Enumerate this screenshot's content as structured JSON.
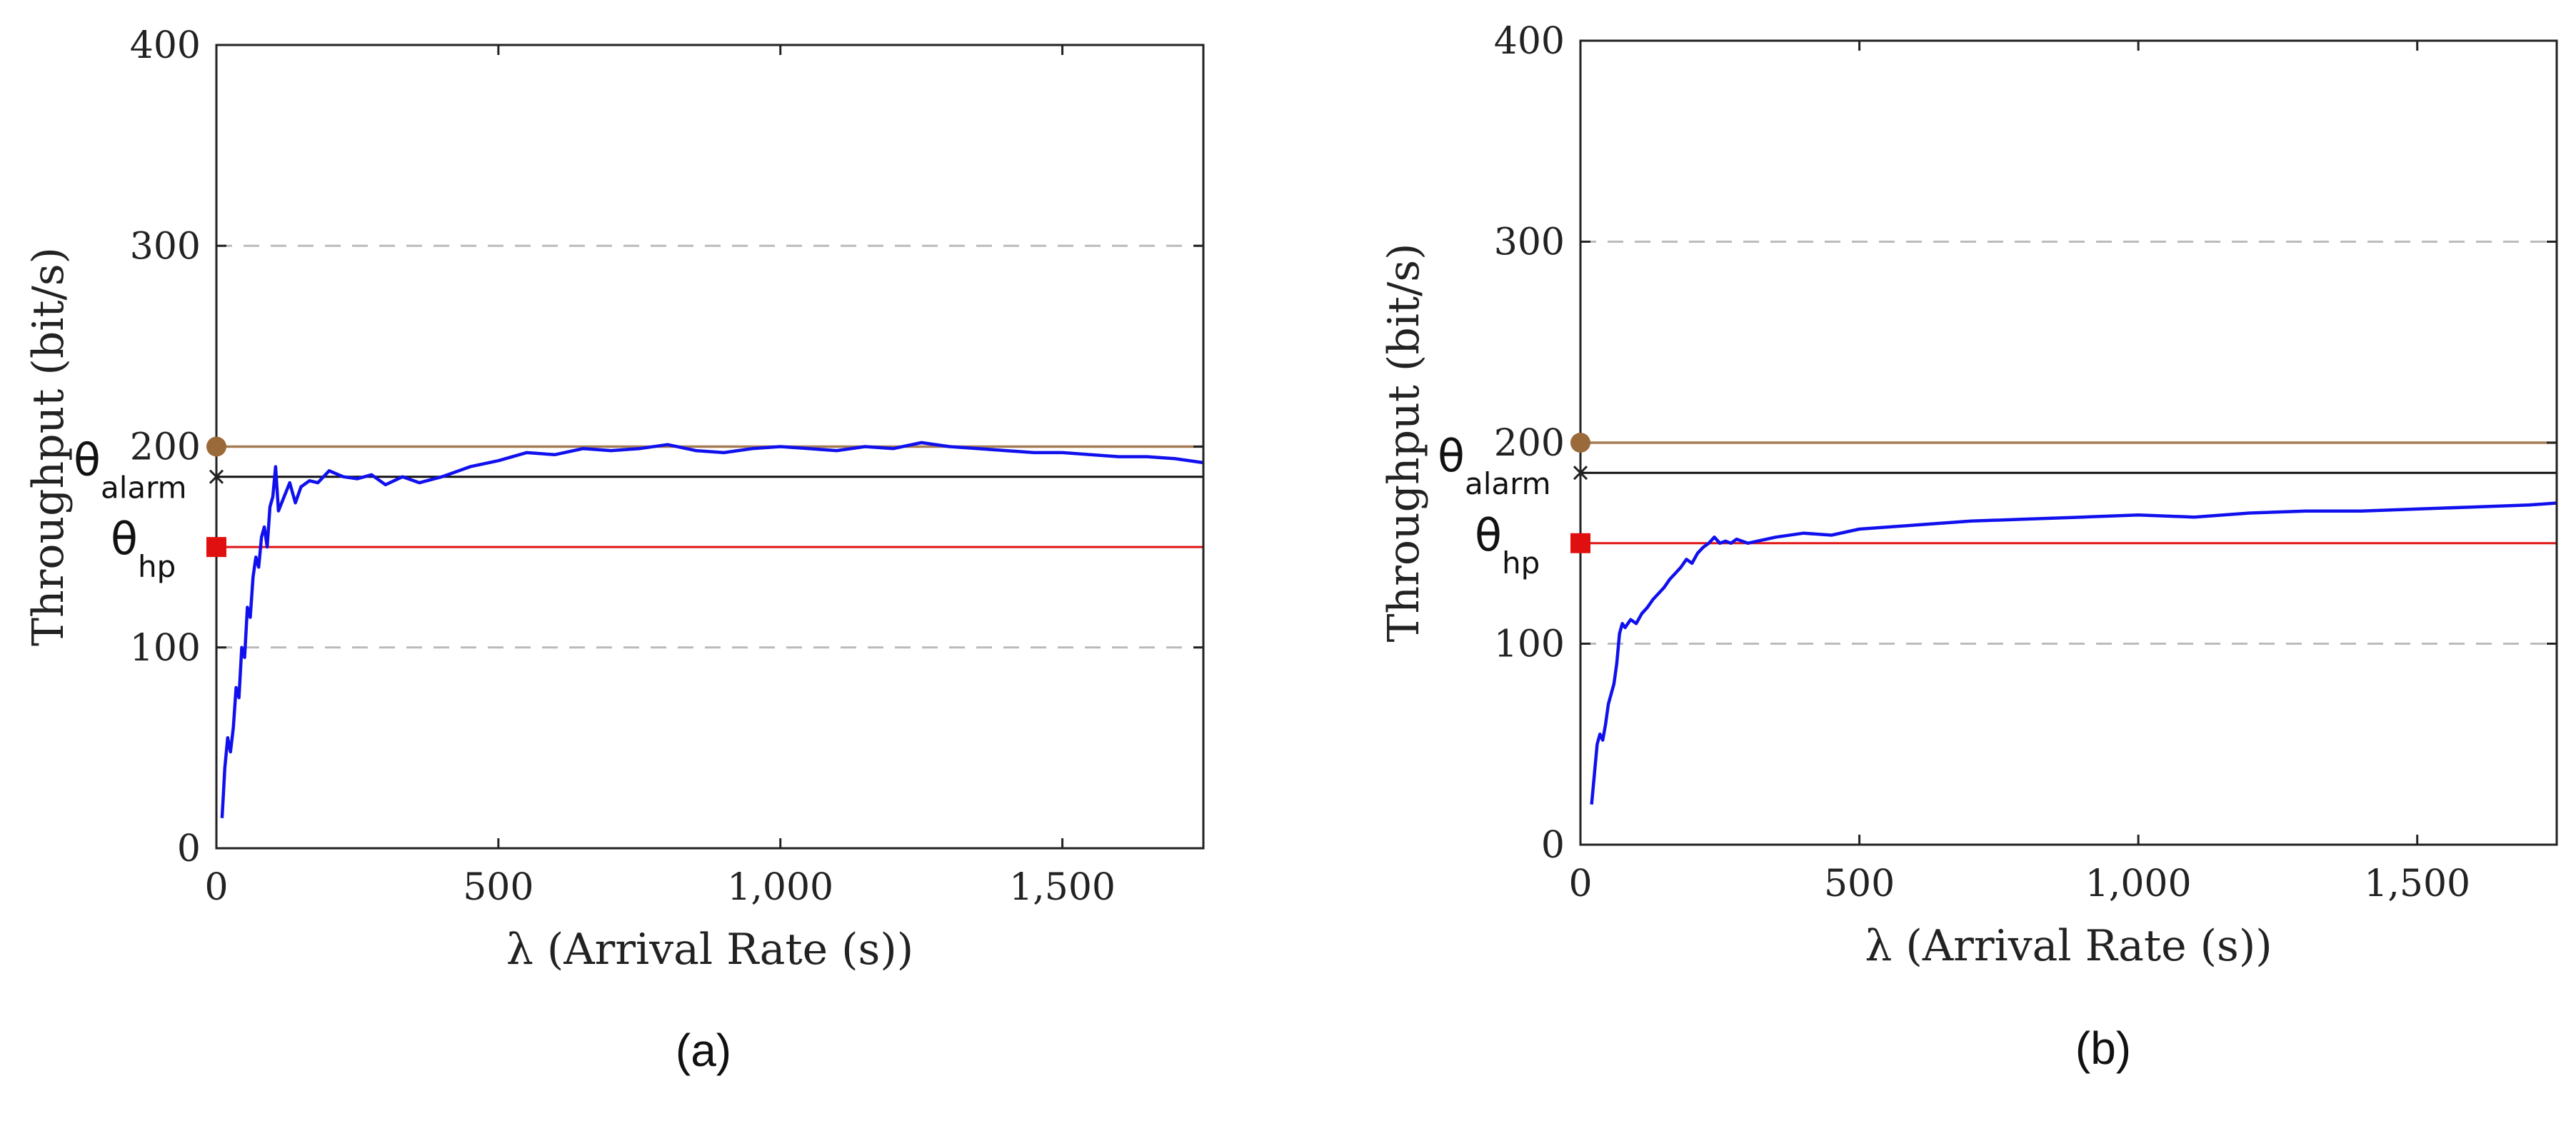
{
  "colors": {
    "series": "#1010ee",
    "alarm_line": "#111111",
    "hp_line": "#e01414",
    "hp_marker": "#e01010",
    "ref_line": "#a67c52",
    "ref_marker": "#9a6a3a"
  },
  "chart_data": [
    {
      "type": "line",
      "panel": "a",
      "caption": "(a)",
      "xlabel": "λ (Arrival Rate (s))",
      "ylabel": "Throughput (bit/s)",
      "xlim": [
        0,
        1750
      ],
      "ylim": [
        0,
        400
      ],
      "xticks": [
        0,
        500,
        1000,
        1500
      ],
      "xtick_labels": [
        "0",
        "500",
        "1,000",
        "1,500"
      ],
      "yticks": [
        0,
        100,
        200,
        300,
        400
      ],
      "ytick_labels": [
        "0",
        "100",
        "200",
        "300",
        "400"
      ],
      "grid_y": [
        100,
        300
      ],
      "thresholds": {
        "reference": 200,
        "alarm": 185,
        "hp": 150,
        "alarm_label": "θ",
        "alarm_sub": "alarm",
        "hp_label": "θ",
        "hp_sub": "hp"
      },
      "series": [
        {
          "name": "throughput",
          "x": [
            10,
            12,
            15,
            20,
            25,
            30,
            35,
            40,
            45,
            50,
            55,
            60,
            65,
            70,
            75,
            80,
            85,
            90,
            95,
            100,
            105,
            110,
            120,
            130,
            140,
            150,
            165,
            180,
            200,
            225,
            250,
            275,
            300,
            330,
            360,
            400,
            450,
            500,
            550,
            600,
            650,
            700,
            750,
            800,
            850,
            900,
            950,
            1000,
            1050,
            1100,
            1150,
            1200,
            1250,
            1300,
            1350,
            1400,
            1450,
            1500,
            1550,
            1600,
            1650,
            1700,
            1750
          ],
          "values": [
            15,
            25,
            40,
            55,
            48,
            60,
            80,
            75,
            100,
            95,
            120,
            115,
            135,
            145,
            140,
            155,
            160,
            150,
            170,
            175,
            190,
            168,
            175,
            182,
            172,
            180,
            183,
            182,
            188,
            185,
            184,
            186,
            181,
            185,
            182,
            185,
            190,
            193,
            197,
            196,
            199,
            198,
            199,
            201,
            198,
            197,
            199,
            200,
            199,
            198,
            200,
            199,
            202,
            200,
            199,
            198,
            197,
            197,
            196,
            195,
            195,
            194,
            192
          ]
        }
      ]
    },
    {
      "type": "line",
      "panel": "b",
      "caption": "(b)",
      "xlabel": "λ (Arrival Rate (s))",
      "ylabel": "Throughput (bit/s)",
      "xlim": [
        0,
        1750
      ],
      "ylim": [
        0,
        400
      ],
      "xticks": [
        0,
        500,
        1000,
        1500
      ],
      "xtick_labels": [
        "0",
        "500",
        "1,000",
        "1,500"
      ],
      "yticks": [
        0,
        100,
        200,
        300,
        400
      ],
      "ytick_labels": [
        "0",
        "100",
        "200",
        "300",
        "400"
      ],
      "grid_y": [
        100,
        300
      ],
      "thresholds": {
        "reference": 200,
        "alarm": 185,
        "hp": 150,
        "alarm_label": "θ",
        "alarm_sub": "alarm",
        "hp_label": "θ",
        "hp_sub": "hp"
      },
      "series": [
        {
          "name": "throughput",
          "x": [
            20,
            25,
            30,
            35,
            40,
            45,
            50,
            55,
            60,
            65,
            70,
            75,
            80,
            90,
            100,
            110,
            120,
            130,
            140,
            150,
            160,
            170,
            180,
            190,
            200,
            210,
            220,
            230,
            240,
            250,
            260,
            270,
            280,
            300,
            350,
            400,
            450,
            500,
            600,
            700,
            800,
            900,
            1000,
            1100,
            1200,
            1300,
            1400,
            1500,
            1600,
            1700,
            1750
          ],
          "values": [
            20,
            35,
            50,
            55,
            52,
            60,
            70,
            75,
            80,
            90,
            105,
            110,
            108,
            112,
            110,
            115,
            118,
            122,
            125,
            128,
            132,
            135,
            138,
            142,
            140,
            145,
            148,
            150,
            153,
            150,
            151,
            150,
            152,
            150,
            153,
            155,
            154,
            157,
            159,
            161,
            162,
            163,
            164,
            163,
            165,
            166,
            166,
            167,
            168,
            169,
            170
          ]
        }
      ]
    }
  ]
}
